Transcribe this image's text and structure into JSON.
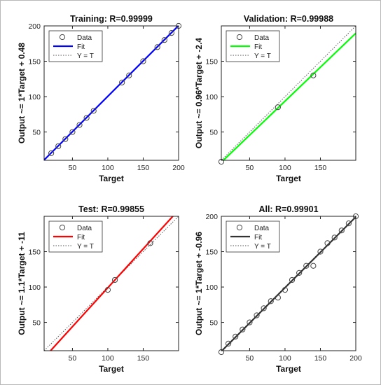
{
  "colors": {
    "training": "#0000ff",
    "validation": "#00ff00",
    "test": "#ff0000",
    "all": "#333333"
  },
  "legend": {
    "data": "Data",
    "fit": "Fit",
    "identity": "Y = T"
  },
  "chart_data": [
    {
      "type": "scatter",
      "title": "Training: R=0.99999",
      "xlabel": "Target",
      "ylabel": "Output ~= 1*Target + 0.48",
      "xlim": [
        10,
        200
      ],
      "ylim": [
        10,
        200
      ],
      "xticks": [
        50,
        100,
        150,
        200
      ],
      "yticks": [
        50,
        100,
        150,
        200
      ],
      "fit": {
        "slope": 1,
        "intercept": 0.48
      },
      "fit_color": "#0000ff",
      "points": [
        [
          20,
          20
        ],
        [
          30,
          30
        ],
        [
          40,
          40
        ],
        [
          50,
          50
        ],
        [
          60,
          60
        ],
        [
          70,
          70
        ],
        [
          80,
          80
        ],
        [
          120,
          120
        ],
        [
          130,
          130
        ],
        [
          150,
          150
        ],
        [
          170,
          170
        ],
        [
          180,
          180
        ],
        [
          190,
          190
        ],
        [
          200,
          200
        ]
      ],
      "legend": [
        "Data",
        "Fit",
        "Y = T"
      ],
      "legend_position": "top-left"
    },
    {
      "type": "scatter",
      "title": "Validation: R=0.99988",
      "xlabel": "Target",
      "ylabel": "Output ~= 0.96*Target + -2.4",
      "xlim": [
        10,
        200
      ],
      "ylim": [
        10,
        200
      ],
      "xticks": [
        50,
        100,
        150
      ],
      "yticks": [
        50,
        100,
        150
      ],
      "fit": {
        "slope": 0.96,
        "intercept": -2.4
      },
      "fit_color": "#00ff00",
      "points": [
        [
          10,
          8
        ],
        [
          90,
          85
        ],
        [
          140,
          130
        ]
      ],
      "legend": [
        "Data",
        "Fit",
        "Y = T"
      ],
      "legend_position": "top-left"
    },
    {
      "type": "scatter",
      "title": "Test: R=0.99855",
      "xlabel": "Target",
      "ylabel": "Output ~= 1.1*Target + -11",
      "xlim": [
        10,
        200
      ],
      "ylim": [
        10,
        200
      ],
      "xticks": [
        50,
        100,
        150
      ],
      "yticks": [
        50,
        100,
        150
      ],
      "fit": {
        "slope": 1.1,
        "intercept": -11
      },
      "fit_color": "#ff0000",
      "points": [
        [
          100,
          96
        ],
        [
          110,
          110
        ],
        [
          160,
          162
        ]
      ],
      "legend": [
        "Data",
        "Fit",
        "Y = T"
      ],
      "legend_position": "top-left"
    },
    {
      "type": "scatter",
      "title": "All: R=0.99901",
      "xlabel": "Target",
      "ylabel": "Output ~= 1*Target + -0.96",
      "xlim": [
        10,
        200
      ],
      "ylim": [
        10,
        200
      ],
      "xticks": [
        50,
        100,
        150,
        200
      ],
      "yticks": [
        50,
        100,
        150,
        200
      ],
      "fit": {
        "slope": 1,
        "intercept": -0.96
      },
      "fit_color": "#333333",
      "points": [
        [
          10,
          8
        ],
        [
          20,
          20
        ],
        [
          30,
          30
        ],
        [
          40,
          40
        ],
        [
          50,
          50
        ],
        [
          60,
          60
        ],
        [
          70,
          70
        ],
        [
          80,
          80
        ],
        [
          90,
          85
        ],
        [
          100,
          96
        ],
        [
          110,
          110
        ],
        [
          120,
          120
        ],
        [
          130,
          130
        ],
        [
          140,
          130
        ],
        [
          150,
          150
        ],
        [
          160,
          162
        ],
        [
          170,
          170
        ],
        [
          180,
          180
        ],
        [
          190,
          190
        ],
        [
          200,
          200
        ]
      ],
      "legend": [
        "Data",
        "Fit",
        "Y = T"
      ],
      "legend_position": "top-left"
    }
  ]
}
